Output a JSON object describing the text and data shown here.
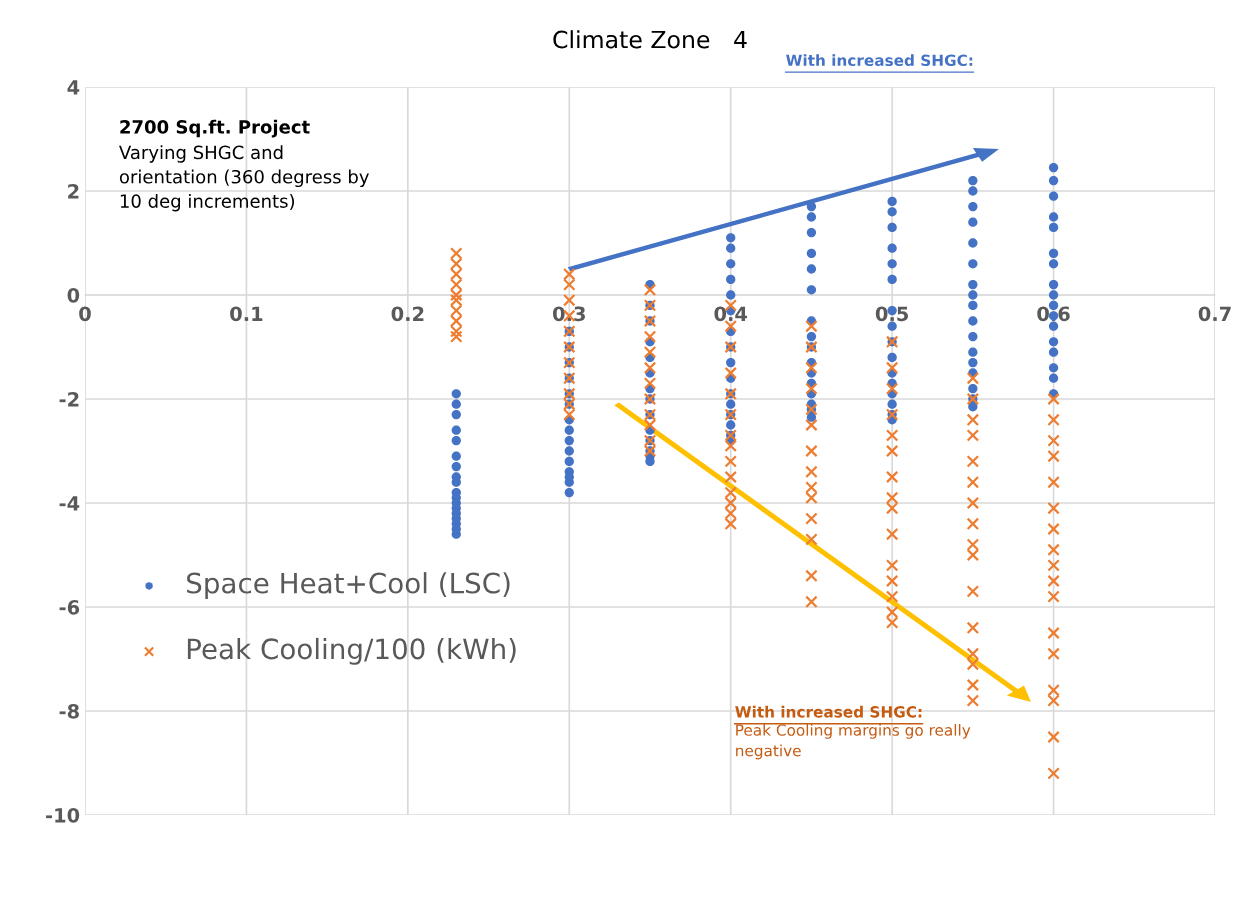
{
  "chart_data": {
    "type": "scatter",
    "title": "Climate Zone   4",
    "annotations": [
      "2700 Sq.ft. Project",
      "Varying SHGC and\norientation (360 degress by\n10 deg increments)",
      "With increased SHGC:",
      "With increased SHGC:",
      "Peak Cooling margins go really\nnegative"
    ],
    "xlim": [
      0,
      0.7
    ],
    "xticks": [
      0,
      0.1,
      0.2,
      0.3,
      0.4,
      0.5,
      0.6,
      0.7
    ],
    "ylim": [
      -10,
      4
    ],
    "yticks": [
      -10,
      -8,
      -6,
      -4,
      -2,
      0,
      2,
      4
    ],
    "grid": true,
    "legend": "left",
    "series": [
      {
        "name": "Space Heat+Cool (LSC)",
        "color": "#4472c4",
        "marker": "circle",
        "x": [
          0.23,
          0.23,
          0.23,
          0.23,
          0.23,
          0.23,
          0.23,
          0.23,
          0.23,
          0.23,
          0.23,
          0.23,
          0.23,
          0.23,
          0.23,
          0.23,
          0.23,
          0.23,
          0.3,
          0.3,
          0.3,
          0.3,
          0.3,
          0.3,
          0.3,
          0.3,
          0.3,
          0.3,
          0.3,
          0.3,
          0.3,
          0.3,
          0.3,
          0.35,
          0.35,
          0.35,
          0.35,
          0.35,
          0.35,
          0.35,
          0.35,
          0.35,
          0.35,
          0.35,
          0.35,
          0.35,
          0.35,
          0.4,
          0.4,
          0.4,
          0.4,
          0.4,
          0.4,
          0.4,
          0.4,
          0.4,
          0.4,
          0.4,
          0.4,
          0.4,
          0.4,
          0.4,
          0.4,
          0.45,
          0.45,
          0.45,
          0.45,
          0.45,
          0.45,
          0.45,
          0.45,
          0.45,
          0.45,
          0.45,
          0.45,
          0.45,
          0.45,
          0.45,
          0.45,
          0.5,
          0.5,
          0.5,
          0.5,
          0.5,
          0.5,
          0.5,
          0.5,
          0.5,
          0.5,
          0.5,
          0.5,
          0.5,
          0.5,
          0.5,
          0.5,
          0.55,
          0.55,
          0.55,
          0.55,
          0.55,
          0.55,
          0.55,
          0.55,
          0.55,
          0.55,
          0.55,
          0.55,
          0.55,
          0.55,
          0.55,
          0.55,
          0.55,
          0.6,
          0.6,
          0.6,
          0.6,
          0.6,
          0.6,
          0.6,
          0.6,
          0.6,
          0.6,
          0.6,
          0.6,
          0.6,
          0.6,
          0.6,
          0.6,
          0.6
        ],
        "values": [
          -1.9,
          -2.1,
          -2.3,
          -2.6,
          -2.8,
          -3.1,
          -3.3,
          -3.5,
          -3.6,
          -3.8,
          -3.9,
          -4.0,
          -4.1,
          -4.2,
          -4.3,
          -4.4,
          -4.5,
          -4.6,
          -0.7,
          -1.0,
          -1.3,
          -1.6,
          -1.9,
          -2.1,
          -2.4,
          -2.6,
          -2.8,
          -3.0,
          -3.2,
          -3.4,
          -3.5,
          -3.6,
          -3.8,
          0.2,
          -0.2,
          -0.5,
          -0.9,
          -1.2,
          -1.5,
          -1.8,
          -2.0,
          -2.3,
          -2.6,
          -2.8,
          -3.0,
          -3.1,
          -3.2,
          1.1,
          0.9,
          0.6,
          0.3,
          0.0,
          -0.3,
          -0.7,
          -1.0,
          -1.3,
          -1.6,
          -1.9,
          -2.1,
          -2.3,
          -2.5,
          -2.7,
          -2.8,
          1.7,
          1.5,
          1.2,
          0.8,
          0.5,
          0.1,
          -0.5,
          -0.8,
          -1.0,
          -1.3,
          -1.5,
          -1.7,
          -1.9,
          -2.1,
          -2.2,
          -2.35,
          1.8,
          1.6,
          1.3,
          0.9,
          0.6,
          0.3,
          -0.3,
          -0.6,
          -0.9,
          -1.2,
          -1.5,
          -1.7,
          -1.9,
          -2.1,
          -2.3,
          -2.4,
          2.2,
          2.0,
          1.7,
          1.4,
          1.0,
          0.6,
          0.2,
          0.0,
          -0.2,
          -0.5,
          -0.8,
          -1.1,
          -1.3,
          -1.5,
          -1.8,
          -2.0,
          -2.15,
          2.45,
          2.2,
          1.9,
          1.5,
          1.3,
          0.8,
          0.6,
          0.2,
          0.0,
          -0.2,
          -0.4,
          -0.6,
          -0.9,
          -1.1,
          -1.4,
          -1.6,
          -1.9
        ]
      },
      {
        "name": "Peak Cooling/100 (kWh)",
        "color": "#ed7d31",
        "marker": "cross",
        "x": [
          0.23,
          0.23,
          0.23,
          0.23,
          0.23,
          0.23,
          0.23,
          0.23,
          0.23,
          0.23,
          0.3,
          0.3,
          0.3,
          0.3,
          0.3,
          0.3,
          0.3,
          0.3,
          0.3,
          0.3,
          0.3,
          0.35,
          0.35,
          0.35,
          0.35,
          0.35,
          0.35,
          0.35,
          0.35,
          0.35,
          0.35,
          0.35,
          0.35,
          0.4,
          0.4,
          0.4,
          0.4,
          0.4,
          0.4,
          0.4,
          0.4,
          0.4,
          0.4,
          0.4,
          0.4,
          0.4,
          0.4,
          0.45,
          0.45,
          0.45,
          0.45,
          0.45,
          0.45,
          0.45,
          0.45,
          0.45,
          0.45,
          0.45,
          0.45,
          0.45,
          0.45,
          0.5,
          0.5,
          0.5,
          0.5,
          0.5,
          0.5,
          0.5,
          0.5,
          0.5,
          0.5,
          0.5,
          0.5,
          0.5,
          0.5,
          0.5,
          0.55,
          0.55,
          0.55,
          0.55,
          0.55,
          0.55,
          0.55,
          0.55,
          0.55,
          0.55,
          0.55,
          0.55,
          0.55,
          0.55,
          0.55,
          0.55,
          0.6,
          0.6,
          0.6,
          0.6,
          0.6,
          0.6,
          0.6,
          0.6,
          0.6,
          0.6,
          0.6,
          0.6,
          0.6,
          0.6,
          0.6,
          0.6,
          0.6
        ],
        "values": [
          0.8,
          0.6,
          0.4,
          0.2,
          0.0,
          -0.1,
          -0.3,
          -0.5,
          -0.7,
          -0.8,
          0.4,
          0.2,
          -0.1,
          -0.4,
          -0.7,
          -1.0,
          -1.3,
          -1.6,
          -1.9,
          -2.1,
          -2.3,
          0.1,
          -0.2,
          -0.5,
          -0.8,
          -1.1,
          -1.4,
          -1.7,
          -2.0,
          -2.3,
          -2.5,
          -2.8,
          -3.0,
          -0.2,
          -0.6,
          -1.0,
          -1.5,
          -1.9,
          -2.3,
          -2.7,
          -2.9,
          -3.2,
          -3.5,
          -3.8,
          -4.0,
          -4.2,
          -4.4,
          -0.6,
          -1.0,
          -1.4,
          -1.8,
          -2.2,
          -2.5,
          -3.0,
          -3.4,
          -3.7,
          -3.9,
          -4.3,
          -4.7,
          -5.4,
          -5.9,
          -0.9,
          -1.4,
          -1.8,
          -2.3,
          -2.7,
          -3.0,
          -3.5,
          -3.9,
          -4.1,
          -4.6,
          -5.2,
          -5.5,
          -5.8,
          -6.1,
          -6.3,
          -1.6,
          -2.0,
          -2.4,
          -2.7,
          -3.2,
          -3.6,
          -4.0,
          -4.4,
          -4.8,
          -5.0,
          -5.7,
          -6.4,
          -6.9,
          -7.1,
          -7.5,
          -7.8,
          -2.0,
          -2.4,
          -2.8,
          -3.1,
          -3.6,
          -4.1,
          -4.5,
          -4.9,
          -5.2,
          -5.5,
          -5.8,
          -6.5,
          -6.9,
          -7.6,
          -7.8,
          -8.5,
          -9.2
        ]
      }
    ]
  }
}
